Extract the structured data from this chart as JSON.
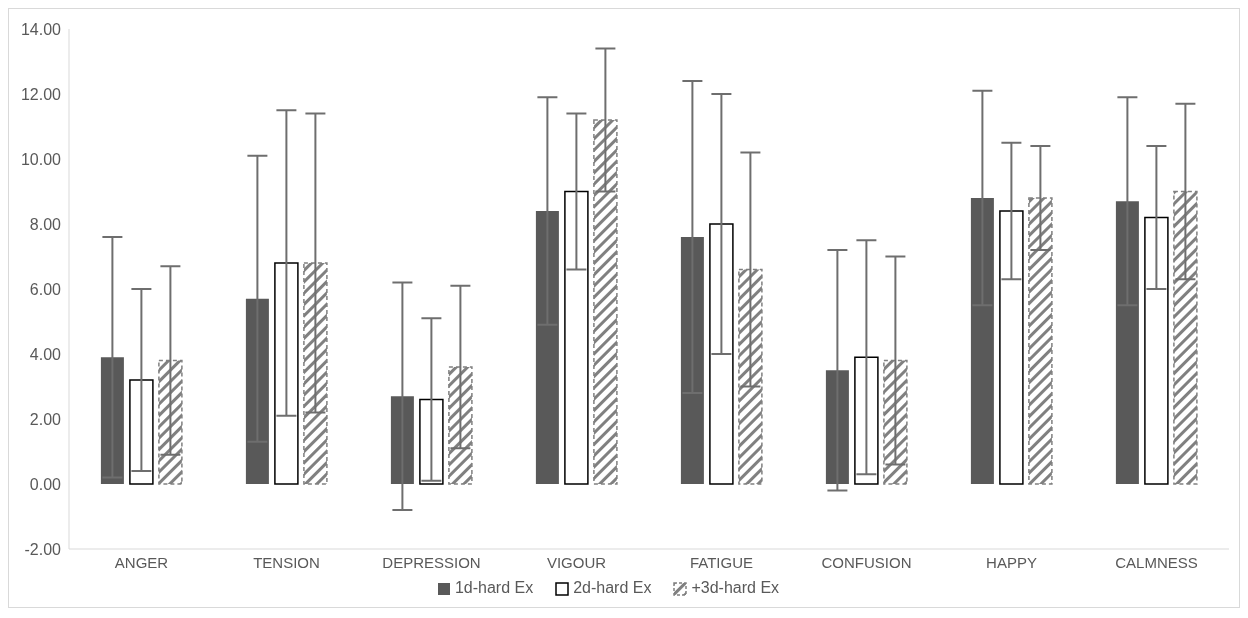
{
  "chart_data": {
    "type": "bar",
    "categories": [
      "ANGER",
      "TENSION",
      "DEPRESSION",
      "VIGOUR",
      "FATIGUE",
      "CONFUSION",
      "HAPPY",
      "CALMNESS"
    ],
    "series": [
      {
        "name": "1d-hard Ex",
        "color": "#595959",
        "values": [
          3.9,
          5.7,
          2.7,
          8.4,
          7.6,
          3.5,
          8.8,
          8.7
        ],
        "errors": [
          3.7,
          4.4,
          3.5,
          3.5,
          4.8,
          3.7,
          3.3,
          3.2
        ]
      },
      {
        "name": "2d-hard Ex",
        "color": "#ffffff",
        "values": [
          3.2,
          6.8,
          2.6,
          9.0,
          8.0,
          3.9,
          8.4,
          8.2
        ],
        "errors": [
          2.8,
          4.7,
          2.5,
          2.4,
          4.0,
          3.6,
          2.1,
          2.2
        ]
      },
      {
        "name": "+3d-hard Ex",
        "color": "#808080",
        "values": [
          3.8,
          6.8,
          3.6,
          11.2,
          6.6,
          3.8,
          8.8,
          9.0
        ],
        "errors": [
          2.9,
          4.6,
          2.5,
          2.2,
          3.6,
          3.2,
          1.6,
          2.7
        ]
      }
    ],
    "ylim": [
      -2,
      14
    ],
    "yticks": [
      {
        "value": -2,
        "label": "-2.00"
      },
      {
        "value": 0,
        "label": "0.00"
      },
      {
        "value": 2,
        "label": "2.00"
      },
      {
        "value": 4,
        "label": "4.00"
      },
      {
        "value": 6,
        "label": "6.00"
      },
      {
        "value": 8,
        "label": "8.00"
      },
      {
        "value": 10,
        "label": "10.00"
      },
      {
        "value": 12,
        "label": "12.00"
      },
      {
        "value": 14,
        "label": "14.00"
      }
    ],
    "grid": false,
    "legend": "bottom"
  }
}
